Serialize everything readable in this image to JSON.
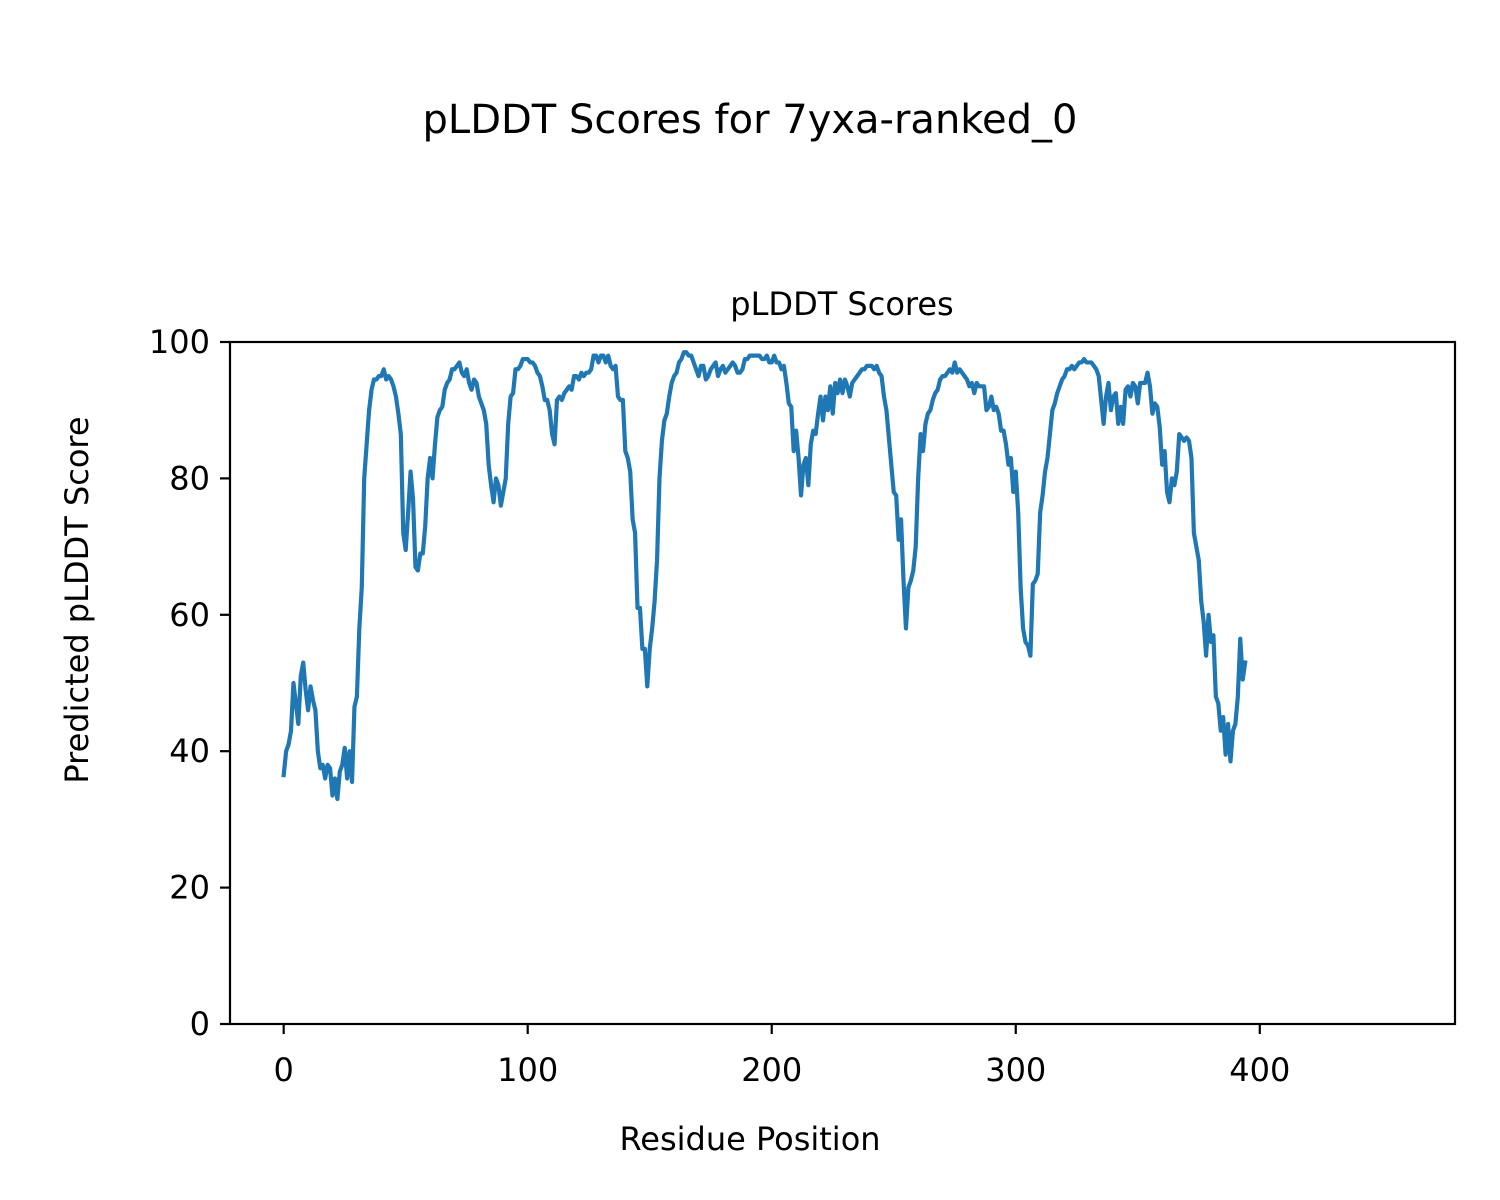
{
  "chart_data": {
    "type": "line",
    "title": "pLDDT Scores for 7yxa-ranked_0",
    "subtitle": "pLDDT Scores",
    "xlabel": "Residue Position",
    "ylabel": "Predicted pLDDT Score",
    "xlim": [
      -22,
      480
    ],
    "ylim": [
      0,
      100
    ],
    "xticks": [
      0,
      100,
      200,
      300,
      400
    ],
    "yticks": [
      0,
      20,
      40,
      60,
      80,
      100
    ],
    "grid": false,
    "line_color": "#1f77b4",
    "series": [
      {
        "values": [
          36.5,
          40,
          41,
          43,
          50,
          47,
          44,
          51,
          53,
          49,
          46,
          49.5,
          47.5,
          46,
          40,
          37.5,
          38,
          36,
          38,
          37.5,
          33.5,
          36,
          33,
          37,
          38,
          40.5,
          36,
          40,
          35.5,
          46.5,
          48,
          58,
          64,
          80,
          85,
          90,
          93,
          94.5,
          94.5,
          95,
          95,
          96,
          94.5,
          95,
          94.5,
          93.5,
          92,
          89.5,
          86.5,
          72,
          69.5,
          75,
          81,
          77,
          67,
          66.5,
          69,
          69,
          73,
          80,
          83,
          80,
          85,
          89,
          90,
          90.5,
          93,
          94,
          94.5,
          96,
          96,
          96.5,
          97,
          95.5,
          95,
          96,
          94,
          93,
          94.5,
          94,
          92,
          91,
          90,
          88,
          82,
          79,
          76.5,
          80,
          79,
          76,
          78,
          80,
          88,
          92,
          92.5,
          96,
          96,
          96.5,
          97.5,
          97.5,
          97.5,
          97,
          97,
          96.5,
          95.5,
          95,
          93.5,
          91.5,
          91.5,
          90,
          86.5,
          85,
          91.5,
          92,
          91.5,
          92.5,
          93,
          93.5,
          93,
          95,
          95,
          94.5,
          95.5,
          95,
          95.5,
          95.5,
          96,
          98,
          98,
          97,
          98,
          98,
          97,
          98,
          96.5,
          96,
          96.5,
          92,
          91.5,
          91.5,
          84,
          83,
          81,
          74,
          72,
          61,
          61,
          55,
          55,
          49.5,
          55,
          58,
          62,
          68,
          80,
          85.5,
          88.5,
          89.5,
          92,
          94,
          95,
          95.5,
          97,
          97.5,
          98.5,
          98.5,
          98,
          98,
          97,
          96,
          95,
          96.5,
          96.5,
          94.5,
          95,
          96,
          96.5,
          97,
          95,
          96,
          96.5,
          95.5,
          96,
          96.5,
          97,
          96.5,
          95.5,
          95.5,
          96,
          97.5,
          97.5,
          98,
          98,
          98,
          98,
          98,
          97.5,
          97.5,
          98,
          97,
          97,
          98,
          97,
          97,
          96,
          96.5,
          94,
          91,
          90.5,
          84,
          87,
          83,
          77.5,
          82,
          83,
          79,
          85,
          87,
          86.5,
          89.5,
          92,
          88.5,
          92,
          90,
          93.5,
          89.5,
          94,
          92.5,
          94.5,
          92.5,
          94.5,
          93.5,
          92,
          94,
          94.5,
          95,
          95.5,
          96,
          96,
          96.5,
          96.5,
          96.5,
          96,
          96.5,
          95.5,
          95,
          92,
          90,
          86,
          82,
          78,
          77.5,
          71,
          74,
          65,
          58,
          64,
          65,
          66.5,
          70,
          80,
          86.5,
          84,
          88,
          89.5,
          90,
          91.5,
          92.5,
          93,
          94.5,
          95,
          95,
          95.5,
          96,
          95.5,
          97,
          95.5,
          96,
          95.5,
          95,
          94.5,
          93.5,
          94,
          92.5,
          94,
          93.5,
          93.5,
          93.5,
          90,
          90.5,
          92,
          90,
          90.5,
          89.5,
          87,
          87,
          85,
          82,
          83,
          78,
          81,
          75,
          64,
          58,
          56,
          55.5,
          54,
          64.5,
          65,
          66,
          75,
          77.5,
          81,
          83,
          86.5,
          90,
          91,
          92.5,
          93.5,
          94.5,
          95,
          96,
          96,
          96.5,
          96,
          96.5,
          97,
          97,
          97.5,
          97,
          97,
          97,
          96.5,
          96,
          95,
          91.5,
          88,
          92,
          94,
          90,
          92,
          92.5,
          88,
          90.5,
          88,
          93,
          93.5,
          92,
          94,
          93.5,
          91,
          94,
          94,
          94,
          95.5,
          93.5,
          89.5,
          91,
          90.5,
          87.5,
          82,
          84,
          78,
          76.5,
          80,
          79,
          81,
          86.5,
          86,
          85.5,
          86,
          85.5,
          83,
          72,
          70,
          68,
          62,
          59,
          54,
          60,
          56,
          57,
          48,
          47,
          43,
          45,
          39.5,
          44,
          38.5,
          43,
          44,
          48,
          56.5,
          50.5,
          53
        ]
      }
    ]
  }
}
